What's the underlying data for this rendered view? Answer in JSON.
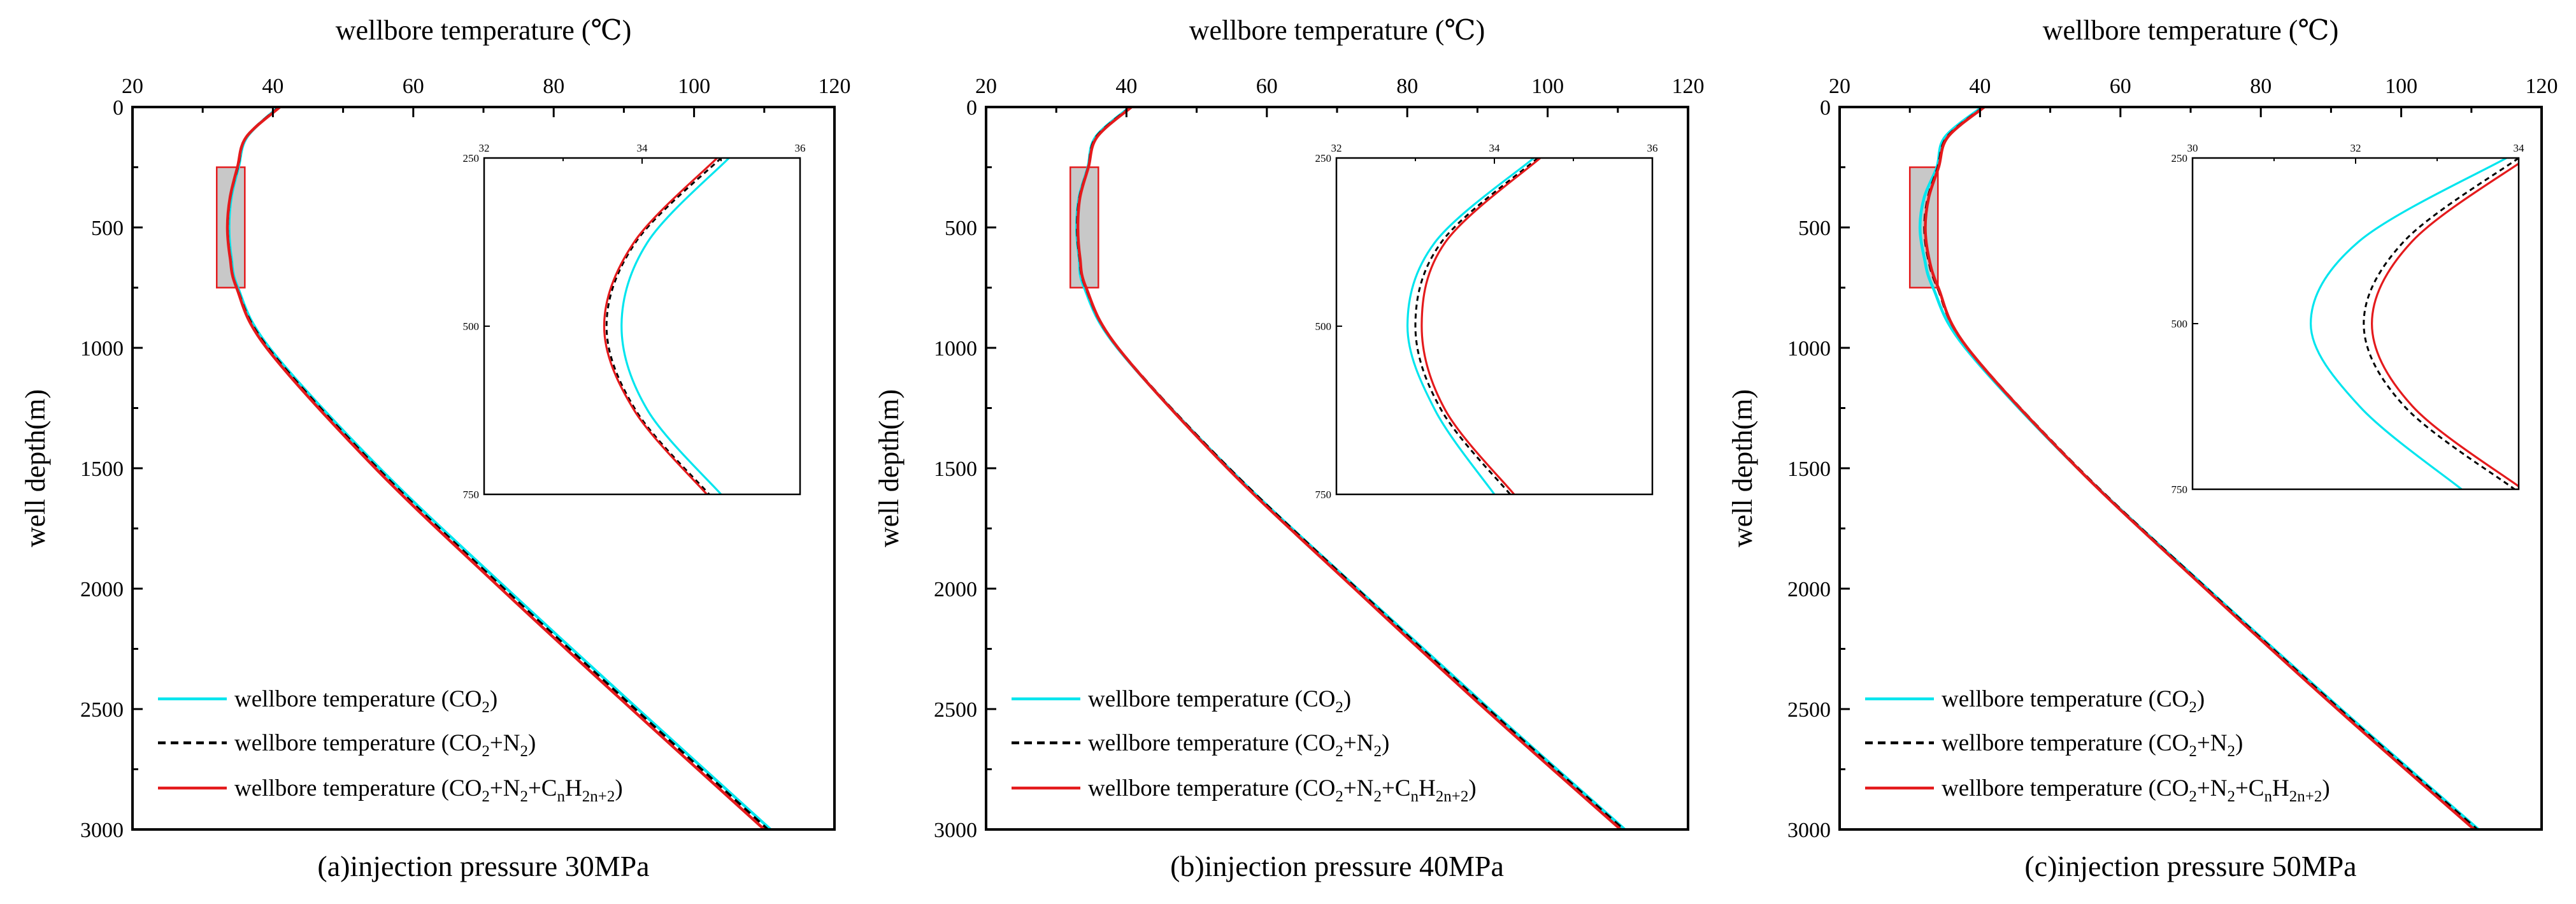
{
  "figure": {
    "colors": {
      "co2": "#00e5ee",
      "co2_n2": "#000000",
      "mix": "#e41a1c",
      "highlight_fill": "#c8c8c8",
      "highlight_stroke": "#e41a1c"
    }
  },
  "chart_data": [
    {
      "type": "line",
      "caption": "(a)injection pressure 30MPa",
      "xlabel": "wellbore temperature (℃)",
      "ylabel": "well depth(m)",
      "xlim": [
        20,
        120
      ],
      "ylim": [
        3000,
        0
      ],
      "xticks": [
        "20",
        "40",
        "60",
        "80",
        "100",
        "120"
      ],
      "yticks": [
        "0",
        "500",
        "1000",
        "1500",
        "2000",
        "2500",
        "3000"
      ],
      "depth": [
        0,
        125,
        250,
        375,
        500,
        625,
        750,
        1000,
        1500,
        2000,
        2500,
        3000
      ],
      "series": [
        {
          "key": "co2",
          "label": "wellbore temperature (CO",
          "sub": "2",
          "label_end": ")",
          "style": "solid",
          "values": [
            40.8,
            36.3,
            35.1,
            34.07,
            33.74,
            34.07,
            35.0,
            39.5,
            55.2,
            73.3,
            92.0,
            110.9
          ]
        },
        {
          "key": "co2_n2",
          "label": "wellbore temperature (CO",
          "sub": "2",
          "label_mid": "+N",
          "sub2": "2",
          "label_end": ")",
          "style": "dashed",
          "values": [
            40.9,
            36.2,
            35.0,
            33.92,
            33.55,
            33.92,
            34.85,
            39.3,
            54.9,
            72.9,
            91.6,
            110.5
          ]
        },
        {
          "key": "mix",
          "label": "wellbore temperature (CO",
          "sub": "2",
          "label_mid": "+N",
          "sub2": "2",
          "label_mid2": "+C",
          "sub3": "n",
          "label_mid3": "H",
          "sub4": "2n+2",
          "label_end": ")",
          "style": "solid",
          "values": [
            41.0,
            36.2,
            34.95,
            33.9,
            33.52,
            33.9,
            34.82,
            39.1,
            54.6,
            72.5,
            91.1,
            110.0
          ]
        }
      ],
      "highlight": {
        "xlim": [
          32,
          36
        ],
        "ylim": [
          250,
          750
        ]
      },
      "inset": {
        "xlim": [
          32,
          36
        ],
        "ylim": [
          250,
          750
        ],
        "xticks": [
          "32",
          "34",
          "36"
        ],
        "yticks": [
          "250",
          "500",
          "750"
        ]
      }
    },
    {
      "type": "line",
      "caption": "(b)injection pressure 40MPa",
      "xlabel": "wellbore temperature (℃)",
      "ylabel": "well depth(m)",
      "xlim": [
        20,
        120
      ],
      "ylim": [
        3000,
        0
      ],
      "xticks": [
        "20",
        "40",
        "60",
        "80",
        "100",
        "120"
      ],
      "yticks": [
        "0",
        "500",
        "1000",
        "1500",
        "2000",
        "2500",
        "3000"
      ],
      "depth": [
        0,
        125,
        250,
        375,
        500,
        625,
        750,
        1000,
        1500,
        2000,
        2500,
        3000
      ],
      "series": [
        {
          "key": "co2",
          "label": "wellbore temperature (CO",
          "sub": "2",
          "label_end": ")",
          "style": "solid",
          "values": [
            40.5,
            35.6,
            34.5,
            33.25,
            32.9,
            33.25,
            34.0,
            38.7,
            54.6,
            72.9,
            91.7,
            111.0
          ]
        },
        {
          "key": "co2_n2",
          "label": "wellbore temperature (CO",
          "sub": "2",
          "label_mid": "+N",
          "sub2": "2",
          "label_end": ")",
          "style": "dashed",
          "values": [
            40.6,
            35.7,
            34.55,
            33.33,
            33.0,
            33.33,
            34.2,
            38.8,
            54.6,
            72.8,
            91.5,
            110.8
          ]
        },
        {
          "key": "mix",
          "label": "wellbore temperature (CO",
          "sub": "2",
          "label_mid": "+N",
          "sub2": "2",
          "label_mid2": "+C",
          "sub3": "n",
          "label_mid3": "H",
          "sub4": "2n+2",
          "label_end": ")",
          "style": "solid",
          "values": [
            40.7,
            35.8,
            34.58,
            33.38,
            33.08,
            33.38,
            34.25,
            38.8,
            54.4,
            72.5,
            91.1,
            110.4
          ]
        }
      ],
      "highlight": {
        "xlim": [
          32,
          36
        ],
        "ylim": [
          250,
          750
        ]
      },
      "inset": {
        "xlim": [
          32,
          36
        ],
        "ylim": [
          250,
          750
        ],
        "xticks": [
          "32",
          "34",
          "36"
        ],
        "yticks": [
          "250",
          "500",
          "750"
        ]
      }
    },
    {
      "type": "line",
      "caption": "(c)injection pressure 50MPa",
      "xlabel": "wellbore temperature (℃)",
      "ylabel": "well depth(m)",
      "xlim": [
        20,
        120
      ],
      "ylim": [
        3000,
        0
      ],
      "xticks": [
        "20",
        "40",
        "60",
        "80",
        "100",
        "120"
      ],
      "yticks": [
        "0",
        "500",
        "1000",
        "1500",
        "2000",
        "2500",
        "3000"
      ],
      "depth": [
        0,
        125,
        250,
        375,
        500,
        625,
        750,
        1000,
        1500,
        2000,
        2500,
        3000
      ],
      "series": [
        {
          "key": "co2",
          "label": "wellbore temperature (CO",
          "sub": "2",
          "label_end": ")",
          "style": "solid",
          "values": [
            40.3,
            35.0,
            33.85,
            32.05,
            31.45,
            32.05,
            33.3,
            37.9,
            53.9,
            72.4,
            91.4,
            111.0
          ]
        },
        {
          "key": "co2_n2",
          "label": "wellbore temperature (CO",
          "sub": "2",
          "label_mid": "+N",
          "sub2": "2",
          "label_end": ")",
          "style": "dashed",
          "values": [
            40.5,
            35.3,
            34.0,
            32.6,
            32.1,
            32.6,
            33.95,
            38.2,
            54.0,
            72.3,
            91.2,
            110.8
          ]
        },
        {
          "key": "mix",
          "label": "wellbore temperature (CO",
          "sub": "2",
          "label_mid": "+N",
          "sub2": "2",
          "label_mid2": "+C",
          "sub3": "n",
          "label_mid3": "H",
          "sub4": "2n+2",
          "label_end": ")",
          "style": "solid",
          "values": [
            40.6,
            35.4,
            34.1,
            32.7,
            32.2,
            32.7,
            34.05,
            38.2,
            53.9,
            72.1,
            90.9,
            110.4
          ]
        }
      ],
      "highlight": {
        "xlim": [
          30,
          34
        ],
        "ylim": [
          250,
          750
        ]
      },
      "inset": {
        "xlim": [
          30,
          34
        ],
        "ylim": [
          250,
          750
        ],
        "xticks": [
          "30",
          "32",
          "34"
        ],
        "yticks": [
          "250",
          "500",
          "750"
        ]
      }
    }
  ]
}
